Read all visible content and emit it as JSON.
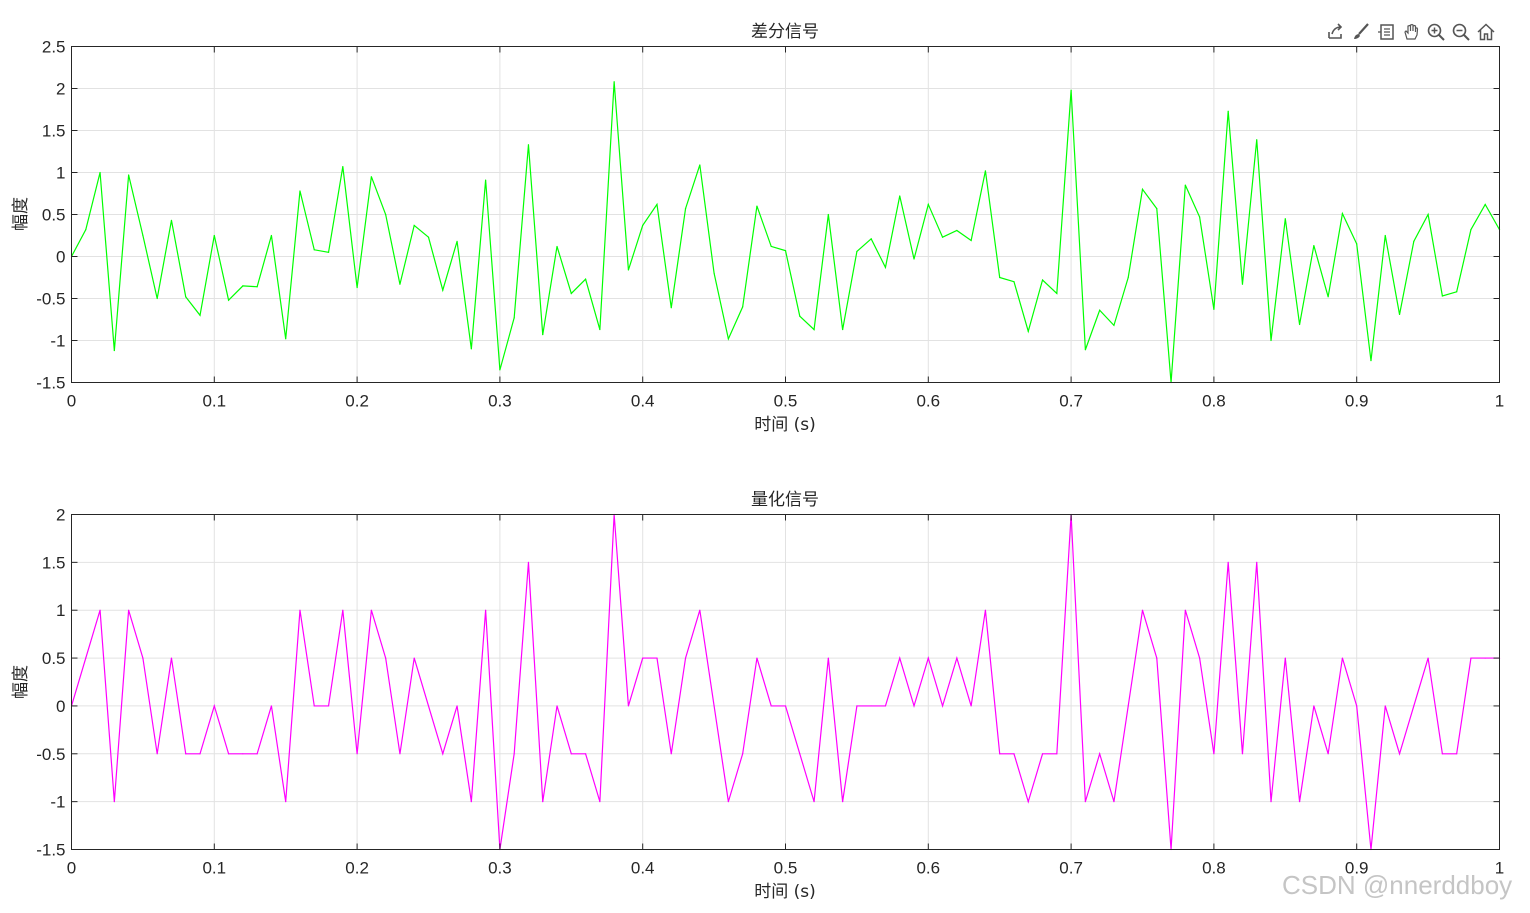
{
  "toolbar": {
    "icons": [
      "export-icon",
      "brush-icon",
      "datatip-icon",
      "pan-icon",
      "zoom-in-icon",
      "zoom-out-icon",
      "home-icon"
    ]
  },
  "watermark": "CSDN @nnerddboy",
  "colors": {
    "series1": "#00ff00",
    "series2": "#ff00ff",
    "grid": "#e2e2e2",
    "axis": "#262626"
  },
  "chart_data": [
    {
      "type": "line",
      "title": "差分信号",
      "xlabel": "时间 (s)",
      "ylabel": "幅度",
      "xlim": [
        0,
        1
      ],
      "ylim": [
        -1.5,
        2.5
      ],
      "xticks": [
        0,
        0.1,
        0.2,
        0.3,
        0.4,
        0.5,
        0.6,
        0.7,
        0.8,
        0.9,
        1
      ],
      "xtick_labels": [
        "0",
        "0.1",
        "0.2",
        "0.3",
        "0.4",
        "0.5",
        "0.6",
        "0.7",
        "0.8",
        "0.9",
        "1"
      ],
      "yticks": [
        -1.5,
        -1,
        -0.5,
        0,
        0.5,
        1,
        1.5,
        2,
        2.5
      ],
      "ytick_labels": [
        "-1.5",
        "-1",
        "-0.5",
        "0",
        "0.5",
        "1",
        "1.5",
        "2",
        "2.5"
      ],
      "grid": true,
      "color": "#00ff00",
      "series": [
        {
          "x": [
            0,
            0.01,
            0.02,
            0.03,
            0.04,
            0.05,
            0.06,
            0.07,
            0.08,
            0.09,
            0.1,
            0.11,
            0.12,
            0.13,
            0.14,
            0.15,
            0.16,
            0.17,
            0.18,
            0.19,
            0.2,
            0.21,
            0.22,
            0.23,
            0.24,
            0.25,
            0.26,
            0.27,
            0.28,
            0.29,
            0.3,
            0.31,
            0.32,
            0.33,
            0.34,
            0.35,
            0.36,
            0.37,
            0.38,
            0.39,
            0.4,
            0.41,
            0.42,
            0.43,
            0.44,
            0.45,
            0.46,
            0.47,
            0.48,
            0.49,
            0.5,
            0.51,
            0.52,
            0.53,
            0.54,
            0.55,
            0.56,
            0.57,
            0.58,
            0.59,
            0.6,
            0.61,
            0.62,
            0.63,
            0.64,
            0.65,
            0.66,
            0.67,
            0.68,
            0.69,
            0.7,
            0.71,
            0.72,
            0.73,
            0.74,
            0.75,
            0.76,
            0.77,
            0.78,
            0.79,
            0.8,
            0.81,
            0.82,
            0.83,
            0.84,
            0.85,
            0.86,
            0.87,
            0.88,
            0.89,
            0.9,
            0.91,
            0.92,
            0.93,
            0.94,
            0.95,
            0.96,
            0.97,
            0.98,
            0.99,
            1
          ],
          "y": [
            0,
            0.32,
            1.0,
            -1.12,
            0.97,
            0.25,
            -0.5,
            0.43,
            -0.48,
            -0.7,
            0.25,
            -0.52,
            -0.35,
            -0.36,
            0.25,
            -0.98,
            0.78,
            0.08,
            0.05,
            1.07,
            -0.37,
            0.95,
            0.5,
            -0.33,
            0.37,
            0.23,
            -0.4,
            0.18,
            -1.1,
            0.91,
            -1.35,
            -0.73,
            1.33,
            -0.93,
            0.12,
            -0.44,
            -0.27,
            -0.87,
            2.08,
            -0.16,
            0.37,
            0.62,
            -0.61,
            0.57,
            1.09,
            -0.2,
            -0.98,
            -0.6,
            0.6,
            0.12,
            0.07,
            -0.71,
            -0.87,
            0.5,
            -0.87,
            0.06,
            0.21,
            -0.13,
            0.72,
            -0.03,
            0.62,
            0.23,
            0.31,
            0.19,
            1.02,
            -0.25,
            -0.3,
            -0.89,
            -0.28,
            -0.44,
            1.98,
            -1.11,
            -0.64,
            -0.82,
            -0.25,
            0.8,
            0.57,
            -1.5,
            0.85,
            0.47,
            -0.63,
            1.73,
            -0.33,
            1.39,
            -1.0,
            0.45,
            -0.81,
            0.13,
            -0.48,
            0.51,
            0.15,
            -1.24,
            0.25,
            -0.69,
            0.18,
            0.5,
            -0.47,
            -0.42,
            0.32,
            0.62,
            0.32
          ]
        }
      ]
    },
    {
      "type": "line",
      "title": "量化信号",
      "xlabel": "时间 (s)",
      "ylabel": "幅度",
      "xlim": [
        0,
        1
      ],
      "ylim": [
        -1.5,
        2
      ],
      "xticks": [
        0,
        0.1,
        0.2,
        0.3,
        0.4,
        0.5,
        0.6,
        0.7,
        0.8,
        0.9,
        1
      ],
      "xtick_labels": [
        "0",
        "0.1",
        "0.2",
        "0.3",
        "0.4",
        "0.5",
        "0.6",
        "0.7",
        "0.8",
        "0.9",
        "1"
      ],
      "yticks": [
        -1.5,
        -1,
        -0.5,
        0,
        0.5,
        1,
        1.5,
        2
      ],
      "ytick_labels": [
        "-1.5",
        "-1",
        "-0.5",
        "0",
        "0.5",
        "1",
        "1.5",
        "2"
      ],
      "grid": true,
      "color": "#ff00ff",
      "series": [
        {
          "x": [
            0,
            0.01,
            0.02,
            0.03,
            0.04,
            0.05,
            0.06,
            0.07,
            0.08,
            0.09,
            0.1,
            0.11,
            0.12,
            0.13,
            0.14,
            0.15,
            0.16,
            0.17,
            0.18,
            0.19,
            0.2,
            0.21,
            0.22,
            0.23,
            0.24,
            0.25,
            0.26,
            0.27,
            0.28,
            0.29,
            0.3,
            0.31,
            0.32,
            0.33,
            0.34,
            0.35,
            0.36,
            0.37,
            0.38,
            0.39,
            0.4,
            0.41,
            0.42,
            0.43,
            0.44,
            0.45,
            0.46,
            0.47,
            0.48,
            0.49,
            0.5,
            0.51,
            0.52,
            0.53,
            0.54,
            0.55,
            0.56,
            0.57,
            0.58,
            0.59,
            0.6,
            0.61,
            0.62,
            0.63,
            0.64,
            0.65,
            0.66,
            0.67,
            0.68,
            0.69,
            0.7,
            0.71,
            0.72,
            0.73,
            0.74,
            0.75,
            0.76,
            0.77,
            0.78,
            0.79,
            0.8,
            0.81,
            0.82,
            0.83,
            0.84,
            0.85,
            0.86,
            0.87,
            0.88,
            0.89,
            0.9,
            0.91,
            0.92,
            0.93,
            0.94,
            0.95,
            0.96,
            0.97,
            0.98,
            0.99,
            1
          ],
          "y": [
            0,
            0.5,
            1,
            -1,
            1,
            0.5,
            -0.5,
            0.5,
            -0.5,
            -0.5,
            0,
            -0.5,
            -0.5,
            -0.5,
            0,
            -1,
            1,
            0,
            0,
            1,
            -0.5,
            1,
            0.5,
            -0.5,
            0.5,
            0,
            -0.5,
            0,
            -1,
            1,
            -1.5,
            -0.5,
            1.5,
            -1,
            0,
            -0.5,
            -0.5,
            -1,
            2,
            0,
            0.5,
            0.5,
            -0.5,
            0.5,
            1,
            0,
            -1,
            -0.5,
            0.5,
            0,
            0,
            -0.5,
            -1,
            0.5,
            -1,
            0,
            0,
            0,
            0.5,
            0,
            0.5,
            0,
            0.5,
            0,
            1,
            -0.5,
            -0.5,
            -1,
            -0.5,
            -0.5,
            2,
            -1,
            -0.5,
            -1,
            0,
            1,
            0.5,
            -1.5,
            1,
            0.5,
            -0.5,
            1.5,
            -0.5,
            1.5,
            -1,
            0.5,
            -1,
            0,
            -0.5,
            0.5,
            0,
            -1.5,
            0,
            -0.5,
            0,
            0.5,
            -0.5,
            -0.5,
            0.5,
            0.5,
            0.5
          ]
        }
      ]
    }
  ]
}
